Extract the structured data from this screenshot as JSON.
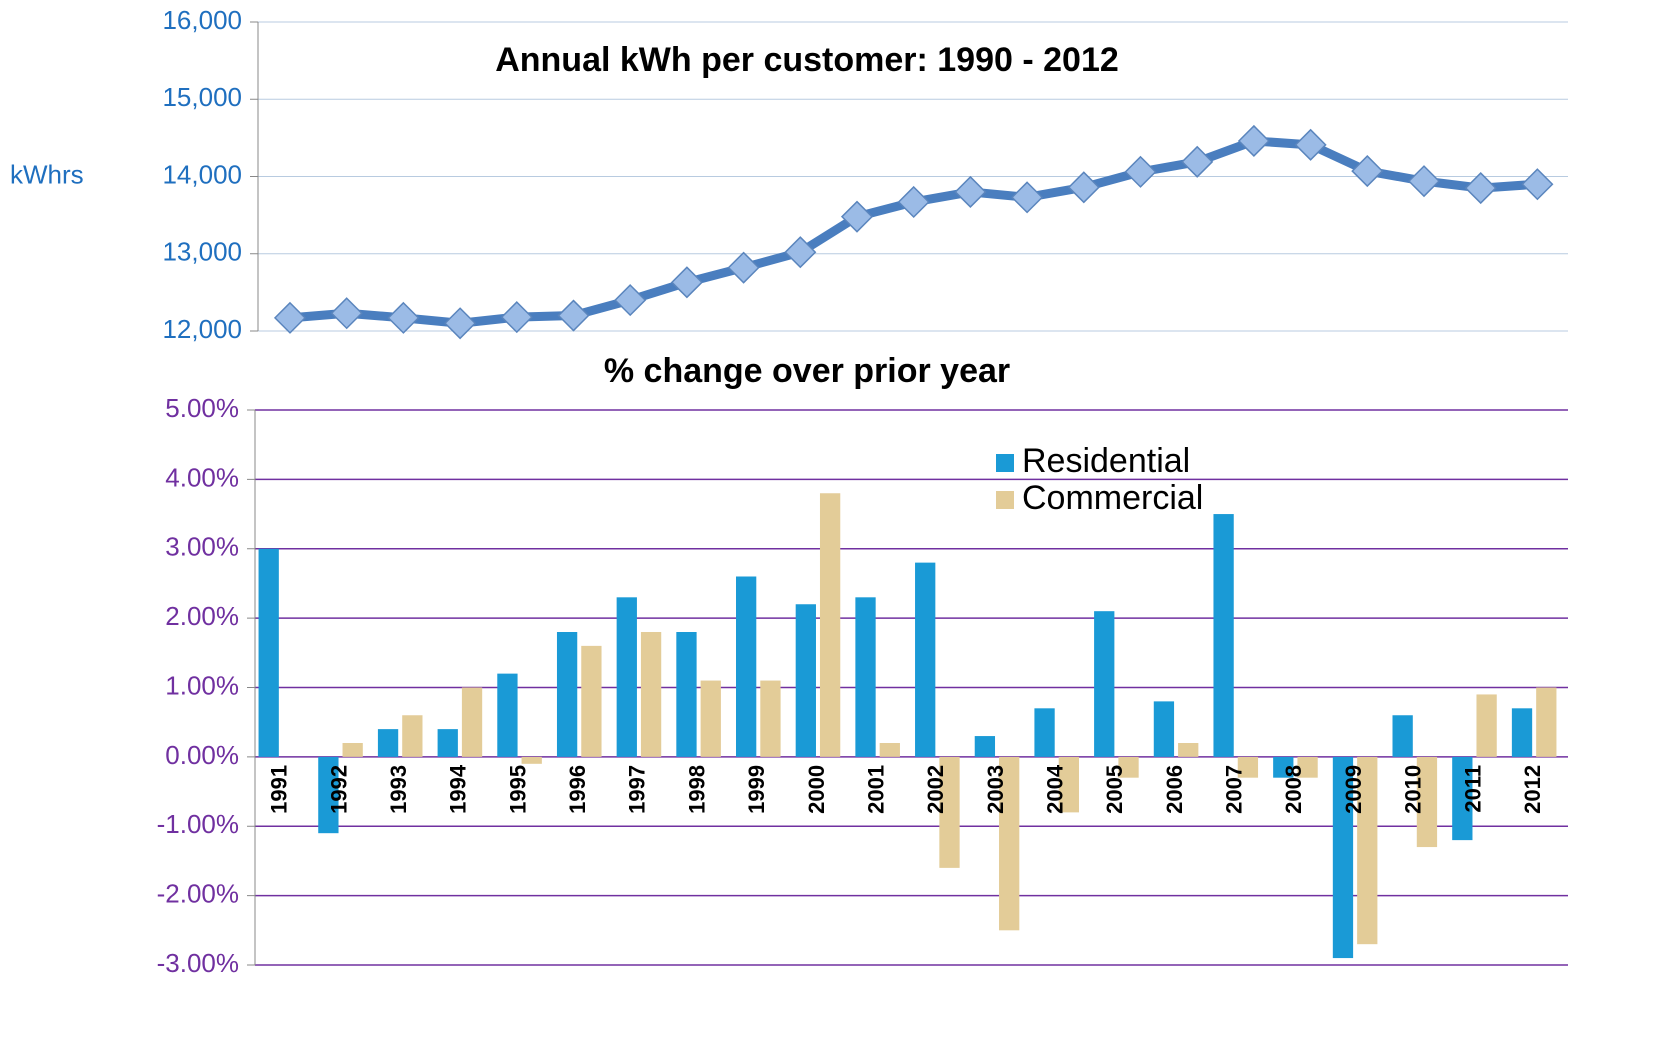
{
  "chart_data": [
    {
      "type": "line",
      "title": "Annual kWh per customer: 1990 - 2012",
      "y_label": "kWhrs",
      "categories": [
        null,
        null,
        null,
        null,
        null,
        null,
        null,
        null,
        null,
        null,
        null,
        null,
        null,
        null,
        null,
        null,
        null,
        null,
        null,
        null,
        null,
        null,
        null
      ],
      "series": [
        {
          "color": "#4a7ebf",
          "values": [
            12170,
            12230,
            12170,
            12100,
            12180,
            12200,
            12400,
            12630,
            12820,
            13020,
            13480,
            13670,
            13800,
            13730,
            13860,
            14060,
            14190,
            14460,
            14410,
            14070,
            13940,
            13850,
            13900
          ]
        }
      ],
      "ylim": [
        12000,
        16000
      ],
      "yticks": [
        {
          "value": 12000,
          "label": "12,000"
        },
        {
          "value": 13000,
          "label": "13,000"
        },
        {
          "value": 14000,
          "label": "14,000"
        },
        {
          "value": 15000,
          "label": "15,000"
        },
        {
          "value": 16000,
          "label": "16,000"
        }
      ],
      "grid": true
    },
    {
      "type": "bar",
      "title": "% change over prior year",
      "categories": [
        "1991",
        "1992",
        "1993",
        "1994",
        "1995",
        "1996",
        "1997",
        "1998",
        "1999",
        "2000",
        "2001",
        "2002",
        "2003",
        "2004",
        "2005",
        "2006",
        "2007",
        "2008",
        "2009",
        "2010",
        "2011",
        "2012"
      ],
      "series": [
        {
          "name": "Residential",
          "color": "#1a9ad6",
          "values": [
            3.0,
            -1.1,
            0.4,
            0.4,
            1.2,
            1.8,
            2.3,
            1.8,
            2.6,
            2.2,
            2.3,
            2.8,
            0.3,
            0.7,
            2.1,
            0.8,
            3.5,
            -0.3,
            -2.9,
            0.6,
            -1.2,
            0.7
          ]
        },
        {
          "name": "Commercial",
          "color": "#e3cc98",
          "values": [
            0,
            0.2,
            0.6,
            1.0,
            -0.1,
            1.6,
            1.8,
            1.1,
            1.1,
            3.8,
            0.2,
            -1.6,
            -2.5,
            -0.8,
            -0.3,
            0.2,
            -0.3,
            -0.3,
            -2.7,
            -1.3,
            0.9,
            1.0
          ]
        }
      ],
      "ylim": [
        -3,
        5
      ],
      "yticks": [
        {
          "value": -3,
          "label": "-3.00%"
        },
        {
          "value": -2,
          "label": "-2.00%"
        },
        {
          "value": -1,
          "label": "-1.00%"
        },
        {
          "value": 0,
          "label": "0.00%"
        },
        {
          "value": 1,
          "label": "1.00%"
        },
        {
          "value": 2,
          "label": "2.00%"
        },
        {
          "value": 3,
          "label": "3.00%"
        },
        {
          "value": 4,
          "label": "4.00%"
        },
        {
          "value": 5,
          "label": "5.00%"
        }
      ],
      "grid": true,
      "legend": "top-right"
    }
  ]
}
